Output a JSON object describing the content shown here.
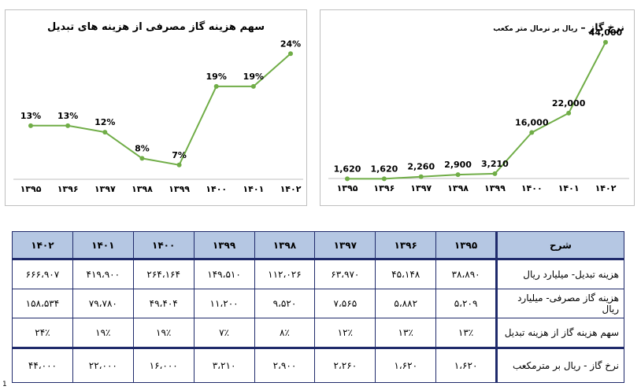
{
  "chart_data": [
    {
      "type": "line",
      "title": "سهم هزینه گاز مصرفی از هزینه های تبدیل",
      "categories": [
        "۱۳۹۵",
        "۱۳۹۶",
        "۱۳۹۷",
        "۱۳۹۸",
        "۱۳۹۹",
        "۱۴۰۰",
        "۱۴۰۱",
        "۱۴۰۲"
      ],
      "values": [
        13,
        13,
        12,
        8,
        7,
        19,
        19,
        24
      ],
      "labels": [
        "13%",
        "13%",
        "12%",
        "8%",
        "7%",
        "19%",
        "19%",
        "24%"
      ],
      "ylim": [
        0,
        28
      ],
      "color": "#70ad47",
      "grid": false
    },
    {
      "type": "line",
      "title": "نرخ گاز –",
      "subtitle": "ریال بر نرمال متر مکعب",
      "categories": [
        "۱۳۹۵",
        "۱۳۹۶",
        "۱۳۹۷",
        "۱۳۹۸",
        "۱۳۹۹",
        "۱۴۰۰",
        "۱۴۰۱",
        "۱۴۰۲"
      ],
      "values": [
        1620,
        1620,
        2260,
        2900,
        3210,
        16000,
        22000,
        44000
      ],
      "labels": [
        "1,620",
        "1,620",
        "2,260",
        "2,900",
        "3,210",
        "16,000",
        "22,000",
        "44,000"
      ],
      "ylim": [
        0,
        52000
      ],
      "color": "#70ad47",
      "grid": false
    }
  ],
  "table": {
    "headers": [
      "شرح",
      "۱۳۹۵",
      "۱۳۹۶",
      "۱۳۹۷",
      "۱۳۹۸",
      "۱۳۹۹",
      "۱۴۰۰",
      "۱۴۰۱",
      "۱۴۰۲"
    ],
    "rows": [
      [
        "هزینه تبدیل- میلیارد ریال",
        "۳۸،۸۹۰",
        "۴۵،۱۴۸",
        "۶۳،۹۷۰",
        "۱۱۲،۰۲۶",
        "۱۴۹،۵۱۰",
        "۲۶۴،۱۶۴",
        "۴۱۹،۹۰۰",
        "۶۶۶،۹۰۷"
      ],
      [
        "هزینه گاز مصرفی- میلیارد ریال",
        "۵،۲۰۹",
        "۵،۸۸۲",
        "۷،۵۶۵",
        "۹،۵۲۰",
        "۱۱،۲۰۰",
        "۴۹،۴۰۴",
        "۷۹،۷۸۰",
        "۱۵۸،۵۳۴"
      ],
      [
        "سهم هزینه گاز از هزینه تبدیل",
        "۱۳٪",
        "۱۳٪",
        "۱۲٪",
        "۸٪",
        "۷٪",
        "۱۹٪",
        "۱۹٪",
        "۲۴٪"
      ],
      [
        "نرخ گاز - ریال بر مترمکعب",
        "۱،۶۲۰",
        "۱،۶۲۰",
        "۲،۲۶۰",
        "۲،۹۰۰",
        "۳،۲۱۰",
        "۱۶،۰۰۰",
        "۲۲،۰۰۰",
        "۴۴،۰۰۰"
      ]
    ]
  },
  "stray_mark": "1",
  "colors": {
    "line": "#70ad47",
    "header_bg": "#b5c7e3",
    "table_border": "#1f2a6b",
    "panel_border": "#bfbfbf"
  }
}
